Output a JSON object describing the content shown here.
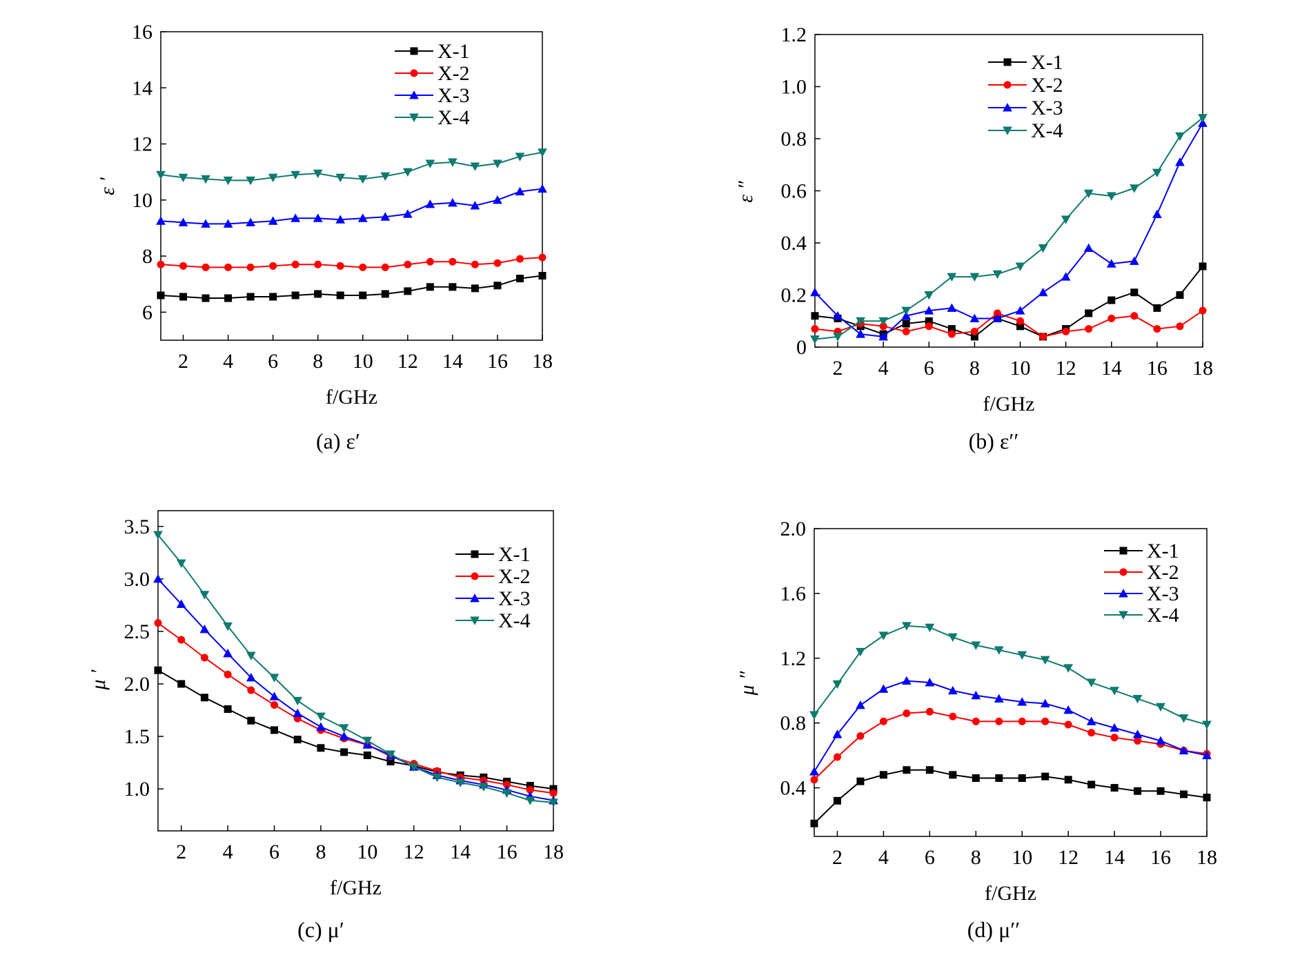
{
  "colors": {
    "X-1": "#000000",
    "X-2": "#ff0000",
    "X-3": "#0000ff",
    "X-4": "#0f7a6e"
  },
  "markers": {
    "X-1": "square",
    "X-2": "circle",
    "X-3": "triangle-up",
    "X-4": "triangle-down"
  },
  "chart_data": [
    {
      "type": "line",
      "caption": "(a)  ε′",
      "xlabel": "f/GHz",
      "ylabel": "ε ′",
      "xlim": [
        1,
        18
      ],
      "ylim": [
        5,
        16
      ],
      "xticks": [
        2,
        4,
        6,
        8,
        10,
        12,
        14,
        16,
        18
      ],
      "xtick_labels": [
        "2",
        "4",
        "6",
        "8",
        "10",
        "12",
        "14",
        "16",
        "18"
      ],
      "yticks": [
        6,
        8,
        10,
        12,
        14,
        16
      ],
      "ytick_labels": [
        "6",
        "8",
        "10",
        "12",
        "14",
        "16"
      ],
      "legend_position": "top-right",
      "x": [
        1,
        2,
        3,
        4,
        5,
        6,
        7,
        8,
        9,
        10,
        11,
        12,
        13,
        14,
        15,
        16,
        17,
        18
      ],
      "series": [
        {
          "name": "X-1",
          "values": [
            6.6,
            6.55,
            6.5,
            6.5,
            6.55,
            6.55,
            6.6,
            6.65,
            6.6,
            6.6,
            6.65,
            6.75,
            6.9,
            6.9,
            6.85,
            6.95,
            7.2,
            7.3
          ]
        },
        {
          "name": "X-2",
          "values": [
            7.7,
            7.65,
            7.6,
            7.6,
            7.6,
            7.65,
            7.7,
            7.7,
            7.65,
            7.6,
            7.6,
            7.7,
            7.8,
            7.8,
            7.7,
            7.75,
            7.9,
            7.95
          ]
        },
        {
          "name": "X-3",
          "values": [
            9.25,
            9.2,
            9.15,
            9.15,
            9.2,
            9.25,
            9.35,
            9.35,
            9.3,
            9.35,
            9.4,
            9.5,
            9.85,
            9.9,
            9.8,
            10.0,
            10.3,
            10.4
          ]
        },
        {
          "name": "X-4",
          "values": [
            10.9,
            10.8,
            10.75,
            10.7,
            10.7,
            10.8,
            10.9,
            10.95,
            10.8,
            10.75,
            10.85,
            11.0,
            11.3,
            11.35,
            11.2,
            11.3,
            11.55,
            11.7
          ]
        }
      ]
    },
    {
      "type": "line",
      "caption": "(b)  ε′′",
      "xlabel": "f/GHz",
      "ylabel": "ε ″",
      "xlim": [
        1,
        18
      ],
      "ylim": [
        0,
        1.2
      ],
      "xticks": [
        2,
        4,
        6,
        8,
        10,
        12,
        14,
        16,
        18
      ],
      "xtick_labels": [
        "2",
        "4",
        "6",
        "8",
        "10",
        "12",
        "14",
        "16",
        "18"
      ],
      "yticks": [
        0,
        0.2,
        0.4,
        0.6,
        0.8,
        1.0,
        1.2
      ],
      "ytick_labels": [
        "0",
        "0.2",
        "0.4",
        "0.6",
        "0.8",
        "1.0",
        "1.2"
      ],
      "legend_position": "top-center",
      "x": [
        1,
        2,
        3,
        4,
        5,
        6,
        7,
        8,
        9,
        10,
        11,
        12,
        13,
        14,
        15,
        16,
        17,
        18
      ],
      "series": [
        {
          "name": "X-1",
          "values": [
            0.12,
            0.11,
            0.08,
            0.05,
            0.09,
            0.1,
            0.07,
            0.04,
            0.11,
            0.08,
            0.04,
            0.07,
            0.13,
            0.18,
            0.21,
            0.15,
            0.2,
            0.31
          ]
        },
        {
          "name": "X-2",
          "values": [
            0.07,
            0.06,
            0.09,
            0.08,
            0.06,
            0.08,
            0.05,
            0.06,
            0.13,
            0.1,
            0.04,
            0.06,
            0.07,
            0.11,
            0.12,
            0.07,
            0.08,
            0.14
          ]
        },
        {
          "name": "X-3",
          "values": [
            0.21,
            0.12,
            0.05,
            0.04,
            0.12,
            0.14,
            0.15,
            0.11,
            0.11,
            0.14,
            0.21,
            0.27,
            0.38,
            0.32,
            0.33,
            0.51,
            0.71,
            0.86
          ]
        },
        {
          "name": "X-4",
          "values": [
            0.03,
            0.04,
            0.1,
            0.1,
            0.14,
            0.2,
            0.27,
            0.27,
            0.28,
            0.31,
            0.38,
            0.49,
            0.59,
            0.58,
            0.61,
            0.67,
            0.81,
            0.88
          ]
        }
      ]
    },
    {
      "type": "line",
      "caption": "(c)  μ′",
      "xlabel": "f/GHz",
      "ylabel": "μ ′",
      "xlim": [
        1,
        18
      ],
      "ylim": [
        0.6,
        3.65
      ],
      "xticks": [
        2,
        4,
        6,
        8,
        10,
        12,
        14,
        16,
        18
      ],
      "xtick_labels": [
        "2",
        "4",
        "6",
        "8",
        "10",
        "12",
        "14",
        "16",
        "18"
      ],
      "yticks": [
        1.0,
        1.5,
        2.0,
        2.5,
        3.0,
        3.5
      ],
      "ytick_labels": [
        "1.0",
        "1.5",
        "2.0",
        "2.5",
        "3.0",
        "3.5"
      ],
      "legend_position": "top-right",
      "x": [
        1,
        2,
        3,
        4,
        5,
        6,
        7,
        8,
        9,
        10,
        11,
        12,
        13,
        14,
        15,
        16,
        17,
        18
      ],
      "series": [
        {
          "name": "X-1",
          "values": [
            2.13,
            2.0,
            1.87,
            1.76,
            1.65,
            1.56,
            1.47,
            1.39,
            1.35,
            1.32,
            1.26,
            1.22,
            1.16,
            1.13,
            1.11,
            1.07,
            1.03,
            1.0
          ]
        },
        {
          "name": "X-2",
          "values": [
            2.58,
            2.42,
            2.25,
            2.09,
            1.94,
            1.8,
            1.67,
            1.56,
            1.48,
            1.42,
            1.31,
            1.24,
            1.17,
            1.11,
            1.08,
            1.04,
            0.99,
            0.96
          ]
        },
        {
          "name": "X-3",
          "values": [
            3.0,
            2.76,
            2.52,
            2.29,
            2.06,
            1.88,
            1.72,
            1.59,
            1.5,
            1.42,
            1.32,
            1.21,
            1.13,
            1.08,
            1.04,
            0.99,
            0.93,
            0.89
          ]
        },
        {
          "name": "X-4",
          "values": [
            3.42,
            3.15,
            2.85,
            2.55,
            2.27,
            2.06,
            1.84,
            1.69,
            1.58,
            1.46,
            1.33,
            1.21,
            1.11,
            1.06,
            1.02,
            0.96,
            0.89,
            0.87
          ]
        }
      ]
    },
    {
      "type": "line",
      "caption": "(d)  μ′′",
      "xlabel": "f/GHz",
      "ylabel": "μ ″",
      "xlim": [
        1,
        18
      ],
      "ylim": [
        0.1,
        2.0
      ],
      "xticks": [
        2,
        4,
        6,
        8,
        10,
        12,
        14,
        16,
        18
      ],
      "xtick_labels": [
        "2",
        "4",
        "6",
        "8",
        "10",
        "12",
        "14",
        "16",
        "18"
      ],
      "yticks": [
        0.4,
        0.8,
        1.2,
        1.6,
        2.0
      ],
      "ytick_labels": [
        "0.4",
        "0.8",
        "1.2",
        "1.6",
        "2.0"
      ],
      "legend_position": "top-right",
      "x": [
        1,
        2,
        3,
        4,
        5,
        6,
        7,
        8,
        9,
        10,
        11,
        12,
        13,
        14,
        15,
        16,
        17,
        18
      ],
      "series": [
        {
          "name": "X-1",
          "values": [
            0.18,
            0.32,
            0.44,
            0.48,
            0.51,
            0.51,
            0.48,
            0.46,
            0.46,
            0.46,
            0.47,
            0.45,
            0.42,
            0.4,
            0.38,
            0.38,
            0.36,
            0.34
          ]
        },
        {
          "name": "X-2",
          "values": [
            0.45,
            0.59,
            0.72,
            0.81,
            0.86,
            0.87,
            0.84,
            0.81,
            0.81,
            0.81,
            0.81,
            0.79,
            0.74,
            0.71,
            0.69,
            0.67,
            0.63,
            0.61
          ]
        },
        {
          "name": "X-3",
          "values": [
            0.5,
            0.73,
            0.91,
            1.01,
            1.06,
            1.05,
            1.0,
            0.97,
            0.95,
            0.93,
            0.92,
            0.88,
            0.81,
            0.77,
            0.73,
            0.69,
            0.63,
            0.6
          ]
        },
        {
          "name": "X-4",
          "values": [
            0.85,
            1.04,
            1.24,
            1.34,
            1.4,
            1.39,
            1.33,
            1.28,
            1.25,
            1.22,
            1.19,
            1.14,
            1.05,
            1.0,
            0.95,
            0.9,
            0.83,
            0.79
          ]
        }
      ]
    }
  ]
}
